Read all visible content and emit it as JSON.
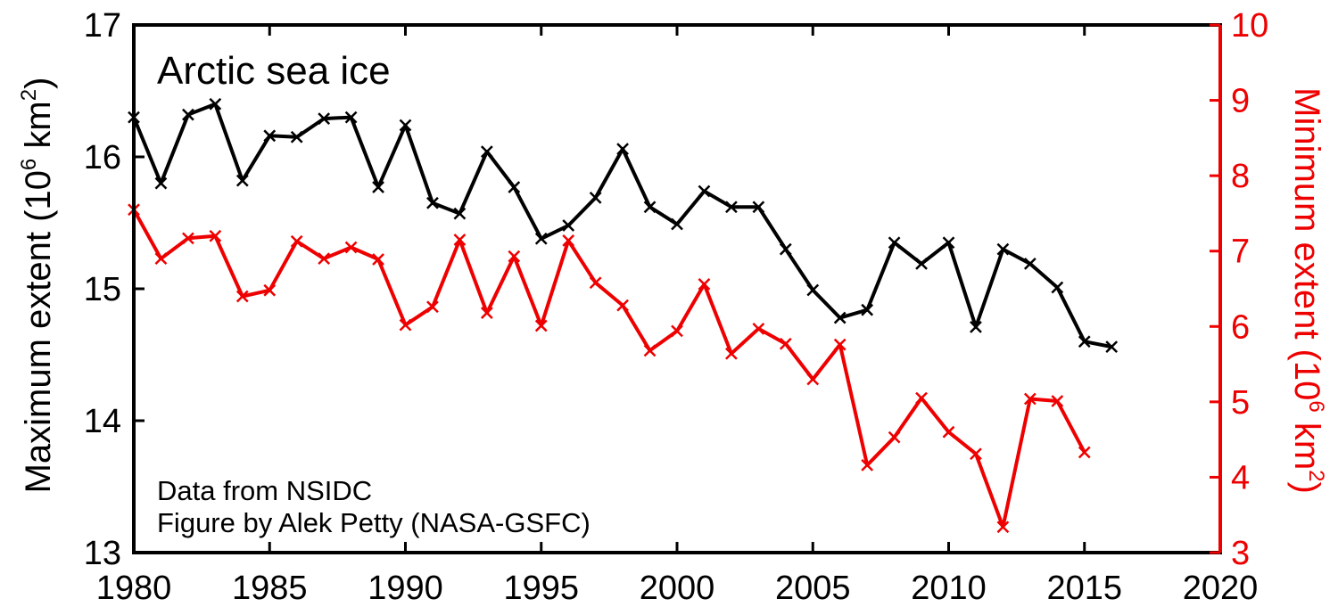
{
  "chart_data": {
    "type": "line",
    "title": "Arctic sea ice",
    "annotations": [
      "Data from NSIDC",
      "Figure by Alek Petty (NASA-GSFC)"
    ],
    "xlim": [
      1980,
      2020
    ],
    "xticks": [
      1980,
      1985,
      1990,
      1995,
      2000,
      2005,
      2010,
      2015,
      2020
    ],
    "y_left": {
      "label_pre": "Maximum extent (10",
      "label_sup": "6",
      "label_post": " km",
      "label_sup2": "2",
      "label_end": ")",
      "lim": [
        13,
        17
      ],
      "ticks": [
        13,
        14,
        15,
        16,
        17
      ]
    },
    "y_right": {
      "label_pre": "Minimum extent (10",
      "label_sup": "6",
      "label_post": " km",
      "label_sup2": "2",
      "label_end": ")",
      "lim": [
        3,
        10
      ],
      "ticks": [
        3,
        4,
        5,
        6,
        7,
        8,
        9,
        10
      ]
    },
    "colors": {
      "max": "#000000",
      "min": "#ee0000",
      "frame": "#000000"
    },
    "series": [
      {
        "axis": "left",
        "x": [
          1980,
          1981,
          1982,
          1983,
          1984,
          1985,
          1986,
          1987,
          1988,
          1989,
          1990,
          1991,
          1992,
          1993,
          1994,
          1995,
          1996,
          1997,
          1998,
          1999,
          2000,
          2001,
          2002,
          2003,
          2004,
          2005,
          2006,
          2007,
          2008,
          2009,
          2010,
          2011,
          2012,
          2013,
          2014,
          2015,
          2016
        ],
        "values": [
          16.3,
          15.8,
          16.32,
          16.4,
          15.82,
          16.16,
          16.15,
          16.29,
          16.3,
          15.77,
          16.24,
          15.65,
          15.57,
          16.04,
          15.77,
          15.38,
          15.48,
          15.69,
          16.06,
          15.62,
          15.49,
          15.74,
          15.62,
          15.62,
          15.3,
          14.99,
          14.78,
          14.84,
          15.35,
          15.19,
          15.35,
          14.71,
          15.3,
          15.19,
          15.01,
          14.6,
          14.56
        ]
      },
      {
        "axis": "right",
        "x": [
          1980,
          1981,
          1982,
          1983,
          1984,
          1985,
          1986,
          1987,
          1988,
          1989,
          1990,
          1991,
          1992,
          1993,
          1994,
          1995,
          1996,
          1997,
          1998,
          1999,
          2000,
          2001,
          2002,
          2003,
          2004,
          2005,
          2006,
          2007,
          2008,
          2009,
          2010,
          2011,
          2012,
          2013,
          2014,
          2015
        ],
        "values": [
          7.55,
          6.9,
          7.17,
          7.2,
          6.4,
          6.48,
          7.13,
          6.9,
          7.05,
          6.89,
          6.02,
          6.26,
          7.15,
          6.18,
          6.93,
          6.01,
          7.14,
          6.58,
          6.28,
          5.68,
          5.94,
          6.56,
          5.64,
          5.97,
          5.77,
          5.3,
          5.76,
          4.16,
          4.53,
          5.05,
          4.6,
          4.31,
          3.34,
          5.04,
          5.01,
          4.33
        ]
      }
    ]
  }
}
